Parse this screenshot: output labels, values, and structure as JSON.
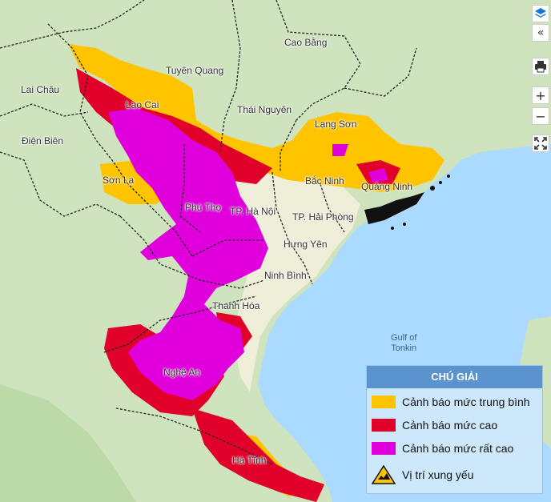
{
  "map": {
    "places": [
      {
        "id": "cao-bang",
        "name": "Cao Bằng"
      },
      {
        "id": "tuyen-quang",
        "name": "Tuyên Quang"
      },
      {
        "id": "lai-chau",
        "name": "Lai Châu"
      },
      {
        "id": "lao-cai",
        "name": "Lào Cai"
      },
      {
        "id": "thai-nguyen",
        "name": "Thái Nguyên"
      },
      {
        "id": "lang-son",
        "name": "Lạng Sơn"
      },
      {
        "id": "dien-bien",
        "name": "Điện Biên"
      },
      {
        "id": "son-la",
        "name": "Sơn La"
      },
      {
        "id": "bac-ninh",
        "name": "Bắc Ninh"
      },
      {
        "id": "quang-ninh",
        "name": "Quảng Ninh"
      },
      {
        "id": "phu-tho",
        "name": "Phú Thọ"
      },
      {
        "id": "ha-noi",
        "name": "TP. Hà Nội"
      },
      {
        "id": "hai-phong",
        "name": "TP. Hải Phòng"
      },
      {
        "id": "hung-yen",
        "name": "Hưng Yên"
      },
      {
        "id": "ninh-binh",
        "name": "Ninh Bình"
      },
      {
        "id": "thanh-hoa",
        "name": "Thanh Hóa"
      },
      {
        "id": "nghe-an",
        "name": "Nghệ An"
      },
      {
        "id": "ha-tinh",
        "name": "Hà Tĩnh"
      }
    ],
    "water_label_line1": "Gulf of",
    "water_label_line2": "Tonkin"
  },
  "controls": {
    "layers_icon": "layers-icon",
    "collapse_icon": "double-chevron-left-icon",
    "print_icon": "printer-icon",
    "zoom_in": "+",
    "zoom_out": "−",
    "fullscreen_icon": "fullscreen-icon"
  },
  "legend": {
    "title": "CHÚ GIẢI",
    "items": [
      {
        "label": "Cảnh báo mức trung bình",
        "color": "#ffc400"
      },
      {
        "label": "Cảnh báo mức cao",
        "color": "#e0002a"
      },
      {
        "label": "Cảnh báo mức rất cao",
        "color": "#e000dc"
      },
      {
        "label": "Vị trí xung yếu",
        "icon": "warning-triangle-icon"
      }
    ]
  },
  "colors": {
    "sea": "#aadaff",
    "land": "#e8ecd8",
    "forest": "#b7d7a0",
    "medium": "#ffc400",
    "high": "#e0002a",
    "very_high": "#e000dc"
  }
}
